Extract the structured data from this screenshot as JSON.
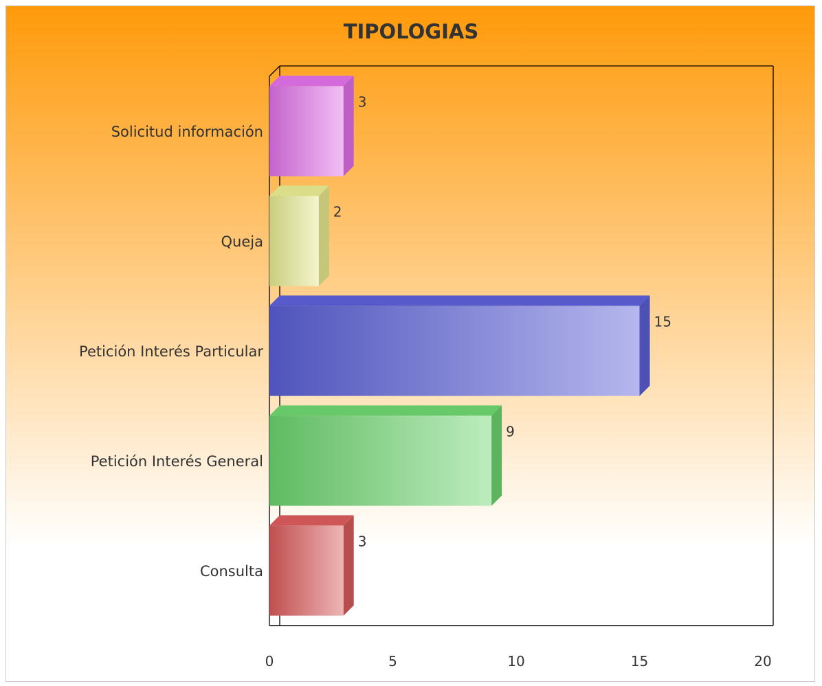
{
  "chart_data": {
    "type": "bar",
    "orientation": "horizontal",
    "title": "TIPOLOGIAS",
    "xlabel": "",
    "ylabel": "",
    "xlim": [
      0,
      20
    ],
    "x_ticks": [
      0,
      5,
      10,
      15,
      20
    ],
    "grid": false,
    "legend": "none",
    "categories": [
      "Solicitud información",
      "Queja",
      "Petición Interés Particular",
      "Petición Interés General",
      "Consulta"
    ],
    "values": [
      3,
      2,
      15,
      9,
      3
    ],
    "colors": [
      "#e070e8",
      "#e6ea90",
      "#5a5fd6",
      "#6cd46e",
      "#d95a5a"
    ],
    "background": {
      "top": "#ff9a0a",
      "bottom": "#ffffff"
    }
  }
}
